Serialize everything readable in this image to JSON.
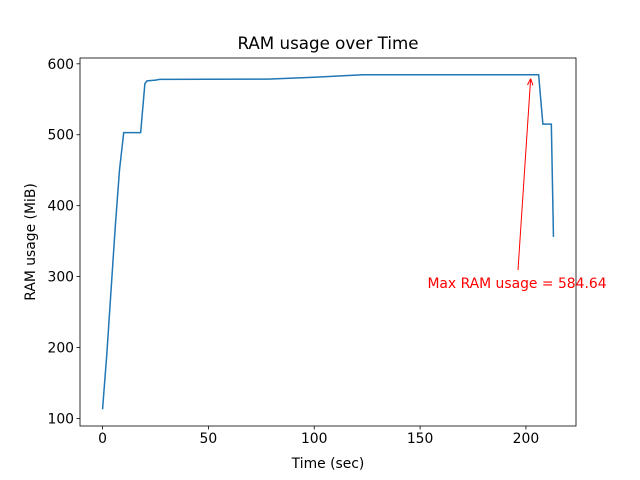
{
  "chart_data": {
    "type": "line",
    "title": "RAM usage over Time",
    "x_label": "Time (sec)",
    "y_label": "RAM usage (MiB)",
    "x": [
      0,
      2,
      4,
      6,
      8,
      10,
      18,
      20,
      21,
      25,
      27,
      78,
      100,
      123,
      206,
      208,
      212,
      213
    ],
    "series": [
      {
        "color": "#1f77b4",
        "values": [
          113,
          190,
          280,
          370,
          450,
          503,
          503,
          572,
          576,
          577,
          578,
          578.5,
          581,
          584.64,
          584.64,
          515,
          515,
          356
        ]
      }
    ],
    "xlim": [
      -10.65,
      223.65
    ],
    "xticks": [
      0,
      50,
      100,
      150,
      200
    ],
    "ylim": [
      89.4,
      608.2
    ],
    "yticks": [
      100,
      200,
      300,
      400,
      500,
      600
    ],
    "annotation": {
      "text": "Max RAM usage = 584.64",
      "color": "red"
    }
  }
}
